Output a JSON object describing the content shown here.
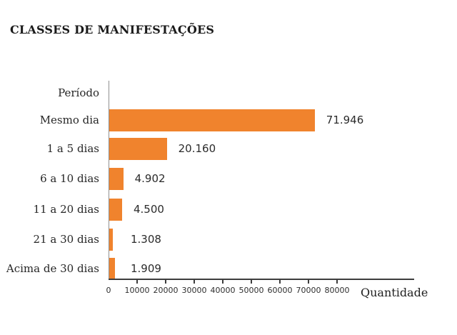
{
  "chart_data": {
    "type": "bar",
    "orientation": "horizontal",
    "title": "CLASSES DE MANIFESTAÇÕES",
    "ylabel": "Período",
    "xlabel": "Quantidade",
    "categories": [
      "Mesmo dia",
      "1 a 5 dias",
      "6 a 10 dias",
      "11 a 20 dias",
      "21 a 30 dias",
      "Acima de 30 dias"
    ],
    "values": [
      71946,
      20160,
      4902,
      4500,
      1308,
      1909
    ],
    "value_labels": [
      "71.946",
      "20.160",
      "4.902",
      "4.500",
      "1.308",
      "1.909"
    ],
    "xlim": [
      0,
      80000
    ],
    "x_ticks": [
      0,
      10000,
      20000,
      30000,
      40000,
      50000,
      60000,
      70000,
      80000
    ],
    "x_tick_labels": [
      "0",
      "10000",
      "20000",
      "30000",
      "40000",
      "50000",
      "60000",
      "70000",
      "80000"
    ],
    "bar_color": "#F0832D",
    "grid": false,
    "legend_position": "none"
  },
  "colors": {
    "bar": "#F0832D",
    "x_axis_line": "#3d3d3d",
    "y_axis_line": "#8f8f8f",
    "title_text": "#1a1a1a",
    "label_text": "#262626",
    "background": "#ffffff"
  }
}
